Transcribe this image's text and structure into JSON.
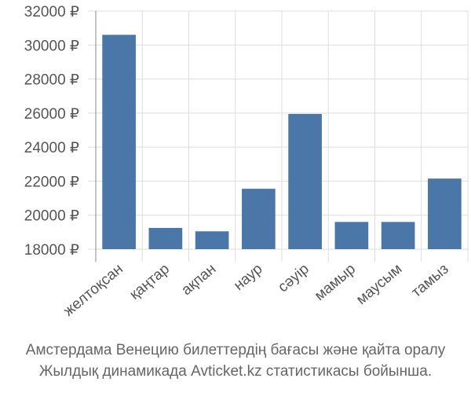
{
  "chart_data": {
    "type": "bar",
    "categories": [
      "желтоқсан",
      "қаңтар",
      "ақпан",
      "наур",
      "сәуір",
      "мамыр",
      "маусым",
      "тамыз"
    ],
    "values": [
      30600,
      19250,
      19050,
      21550,
      25950,
      19600,
      19600,
      22150
    ],
    "y_ticks": [
      {
        "value": 18000,
        "label": "18000 ₽"
      },
      {
        "value": 20000,
        "label": "20000 ₽"
      },
      {
        "value": 22000,
        "label": "22000 ₽"
      },
      {
        "value": 24000,
        "label": "24000 ₽"
      },
      {
        "value": 26000,
        "label": "26000 ₽"
      },
      {
        "value": 28000,
        "label": "28000 ₽"
      },
      {
        "value": 30000,
        "label": "30000 ₽"
      },
      {
        "value": 32000,
        "label": "32000 ₽"
      }
    ],
    "ylim": [
      18000,
      32000
    ],
    "grid": true,
    "bar_color": "#4a77a8"
  },
  "caption": {
    "line1": "Амстердама Венецию билеттердің бағасы және қайта оралу",
    "line2": "Жылдық динамикада Avticket.kz статистикасы бойынша."
  }
}
